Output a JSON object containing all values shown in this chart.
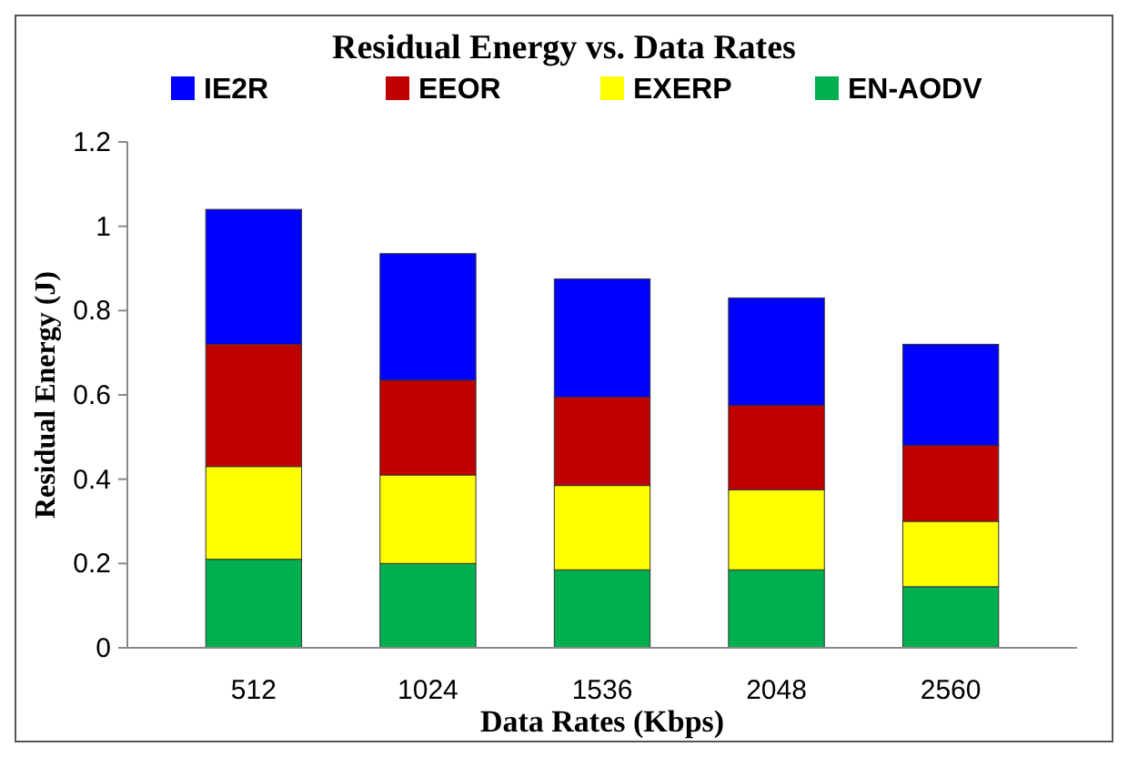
{
  "chart_data": {
    "type": "bar",
    "title": "Residual Energy vs. Data Rates",
    "xlabel": "Data Rates (Kbps)",
    "ylabel": "Residual Energy (J)",
    "categories": [
      "512",
      "1024",
      "1536",
      "2048",
      "2560"
    ],
    "stacked": true,
    "legend": "top",
    "grid": false,
    "ylim": [
      0,
      1.2
    ],
    "yticks": [
      0,
      0.2,
      0.4,
      0.6,
      0.8,
      1,
      1.2
    ],
    "series": [
      {
        "name": "EN-AODV",
        "color": "#00b050",
        "values": [
          0.21,
          0.2,
          0.185,
          0.185,
          0.145
        ]
      },
      {
        "name": "EXERP",
        "color": "#ffff00",
        "values": [
          0.22,
          0.21,
          0.2,
          0.19,
          0.155
        ]
      },
      {
        "name": "EEOR",
        "color": "#c00000",
        "values": [
          0.29,
          0.225,
          0.21,
          0.2,
          0.18
        ]
      },
      {
        "name": "IE2R",
        "color": "#0000ff",
        "values": [
          0.32,
          0.3,
          0.28,
          0.255,
          0.24
        ]
      }
    ]
  }
}
